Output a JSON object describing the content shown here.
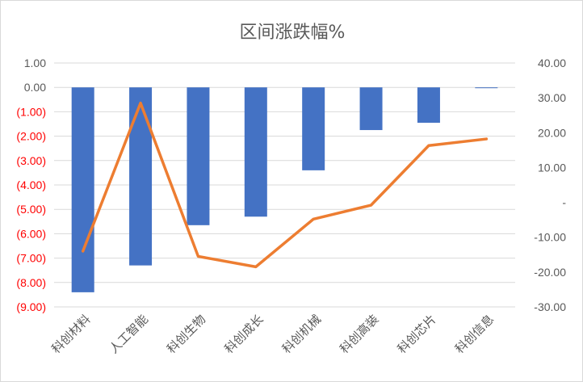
{
  "chart_data": {
    "type": "bar+line",
    "title": "区间涨跌幅%",
    "categories": [
      "科创材料",
      "人工智能",
      "科创生物",
      "科创成长",
      "科创机械",
      "科创高装",
      "科创芯片",
      "科创信息"
    ],
    "series": [
      {
        "type": "bar",
        "axis": "left",
        "color": "#4472c4",
        "values": [
          -8.4,
          -7.3,
          -5.65,
          -5.3,
          -3.4,
          -1.75,
          -1.45,
          -0.03
        ]
      },
      {
        "type": "line",
        "axis": "right",
        "color": "#ed7d31",
        "values": [
          -14.0,
          28.5,
          -15.5,
          -18.5,
          -4.8,
          -0.8,
          16.3,
          18.2
        ]
      }
    ],
    "y_left": {
      "range": [
        -9,
        1
      ],
      "ticks": [
        1,
        0,
        -1,
        -2,
        -3,
        -4,
        -5,
        -6,
        -7,
        -8,
        -9
      ],
      "tick_labels": [
        "1.00",
        "0.00",
        "(1.00)",
        "(2.00)",
        "(3.00)",
        "(4.00)",
        "(5.00)",
        "(6.00)",
        "(7.00)",
        "(8.00)",
        "(9.00)"
      ],
      "positive_color": "#595959",
      "negative_color": "#ff0000"
    },
    "y_right": {
      "range": [
        -30,
        40
      ],
      "ticks": [
        40,
        30,
        20,
        10,
        0,
        -10,
        -20,
        -30
      ],
      "tick_labels": [
        "40.00",
        "30.00",
        "20.00",
        "10.00",
        "-",
        "-10.00",
        "-20.00",
        "-30.00"
      ],
      "color": "#595959"
    },
    "gridlines": true
  }
}
